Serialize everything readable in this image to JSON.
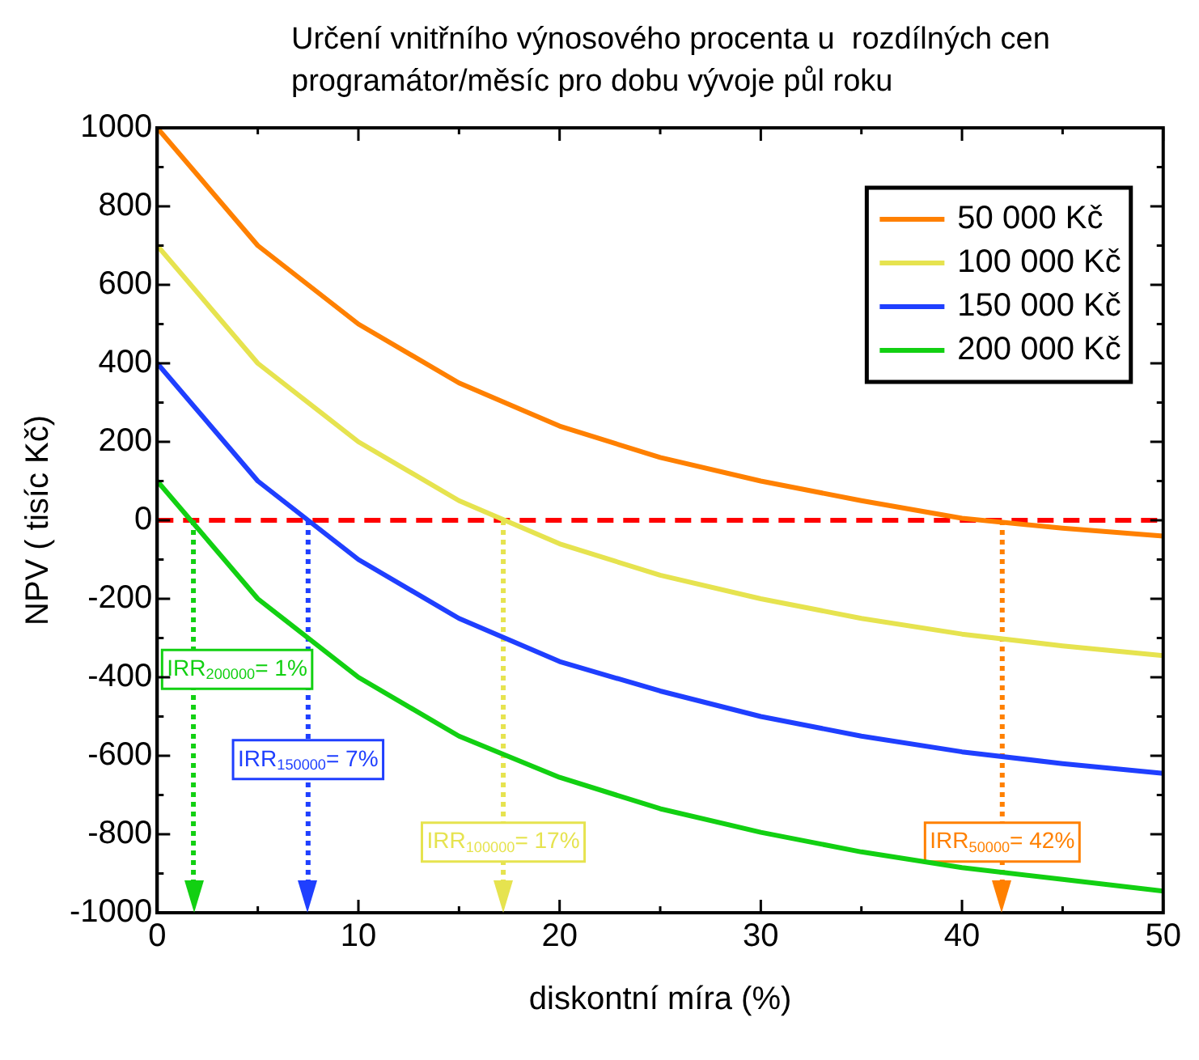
{
  "chart_data": {
    "type": "line",
    "title": "Určení vnitřního výnosového procenta u  rozdílných cen programátor/měsíc pro dobu vývoje půl roku",
    "xlabel": "diskontní míra (%)",
    "ylabel": "NPV ( tisíc Kč)",
    "x": [
      0,
      5,
      10,
      15,
      20,
      25,
      30,
      35,
      40,
      45,
      50
    ],
    "series": [
      {
        "name": "50 000 Kč",
        "color": "#ff8000",
        "values": [
          1000,
          700,
          500,
          350,
          240,
          160,
          100,
          50,
          5,
          -20,
          -40
        ]
      },
      {
        "name": "100 000 Kč",
        "color": "#e6e34f",
        "values": [
          700,
          400,
          200,
          50,
          -60,
          -140,
          -200,
          -250,
          -290,
          -320,
          -345
        ]
      },
      {
        "name": "150 000 Kč",
        "color": "#1f3fff",
        "values": [
          400,
          100,
          -100,
          -250,
          -360,
          -435,
          -500,
          -550,
          -590,
          -620,
          -645
        ]
      },
      {
        "name": "200 000 Kč",
        "color": "#12d012",
        "values": [
          100,
          -200,
          -400,
          -550,
          -655,
          -735,
          -795,
          -845,
          -885,
          -915,
          -945
        ]
      }
    ],
    "xlim": [
      0,
      50
    ],
    "xticks": [
      0,
      10,
      20,
      30,
      40,
      50
    ],
    "ylim": [
      -1000,
      1000
    ],
    "yticks": [
      -1000,
      -800,
      -600,
      -400,
      -200,
      0,
      200,
      400,
      600,
      800,
      1000
    ],
    "ref_lines": [
      {
        "axis": "y",
        "value": 0,
        "color": "#ff0000",
        "line_style": "dashed"
      },
      {
        "axis": "x",
        "value": 1.8,
        "color": "#12d012",
        "line_style": "dotted"
      },
      {
        "axis": "x",
        "value": 7.5,
        "color": "#1f3fff",
        "line_style": "dotted"
      },
      {
        "axis": "x",
        "value": 17.2,
        "color": "#e6e34f",
        "line_style": "dotted"
      },
      {
        "axis": "x",
        "value": 42,
        "color": "#ff8000",
        "line_style": "dotted"
      }
    ],
    "annotations": [
      "IRR$_{200000}$= 1%",
      "IRR$_{150000}$= 7%",
      "IRR$_{100000}$= 17%",
      "IRR$_{50000}$= 42%"
    ],
    "legend": "top right",
    "marker": "none",
    "line_style": "solid"
  }
}
